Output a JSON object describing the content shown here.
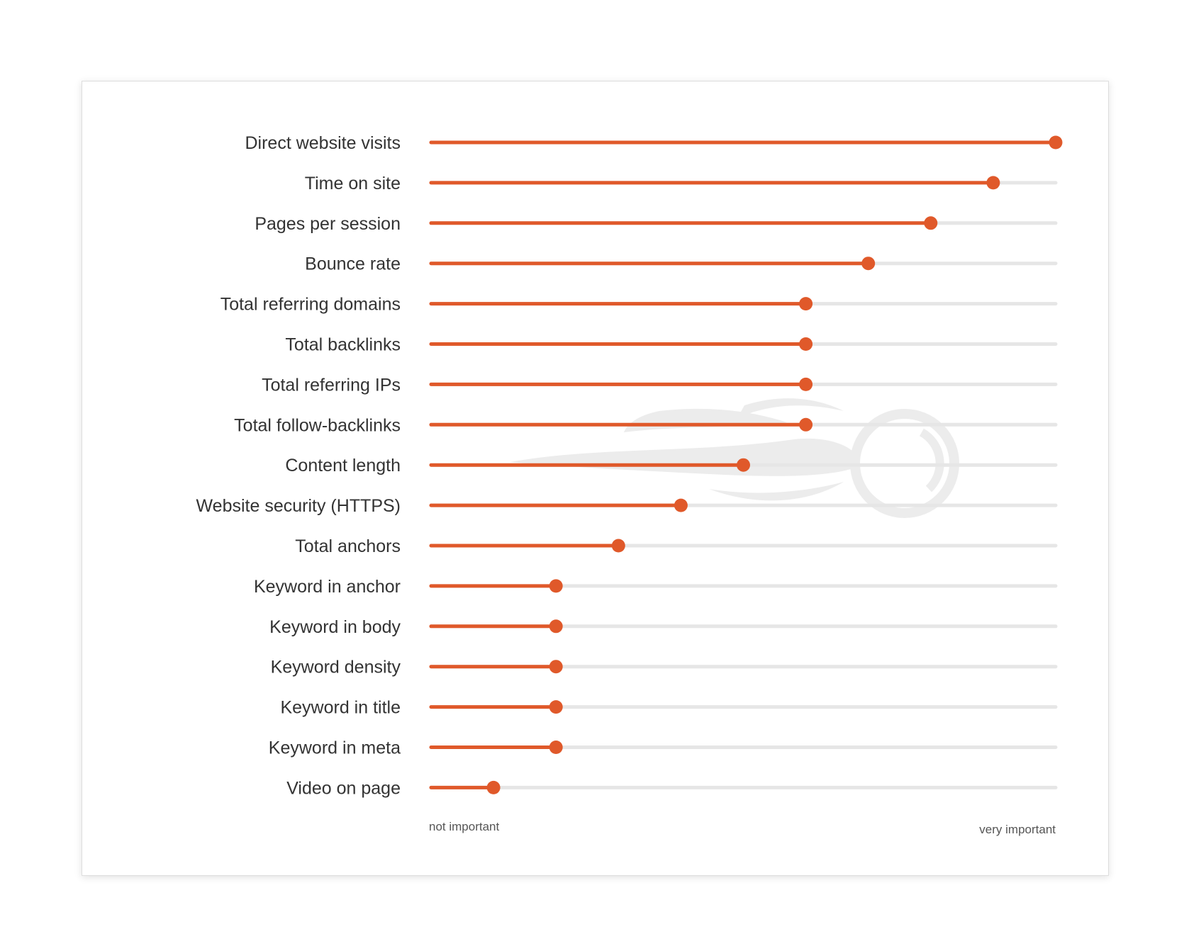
{
  "colors": {
    "accent": "#e0592a",
    "track": "#e6e6e6",
    "watermark": "#ececec",
    "text": "#333333"
  },
  "chart_data": {
    "type": "bar",
    "style": "lollipop",
    "orientation": "horizontal",
    "categories": [
      "Direct website visits",
      "Time on site",
      "Pages per session",
      "Bounce rate",
      "Total referring domains",
      "Total backlinks",
      "Total referring IPs",
      "Total follow-backlinks",
      "Content length",
      "Website security (HTTPS)",
      "Total anchors",
      "Keyword in anchor",
      "Keyword in body",
      "Keyword density",
      "Keyword in title",
      "Keyword in meta",
      "Video on page"
    ],
    "values": [
      1.0,
      0.9,
      0.8,
      0.7,
      0.6,
      0.6,
      0.6,
      0.6,
      0.5,
      0.4,
      0.3,
      0.2,
      0.2,
      0.2,
      0.2,
      0.2,
      0.1
    ],
    "xlim": [
      0,
      1
    ],
    "axis_min_label": "not important",
    "axis_max_label": "very important",
    "grid": false,
    "legend": "none",
    "watermark": "flame-logo-icon"
  }
}
